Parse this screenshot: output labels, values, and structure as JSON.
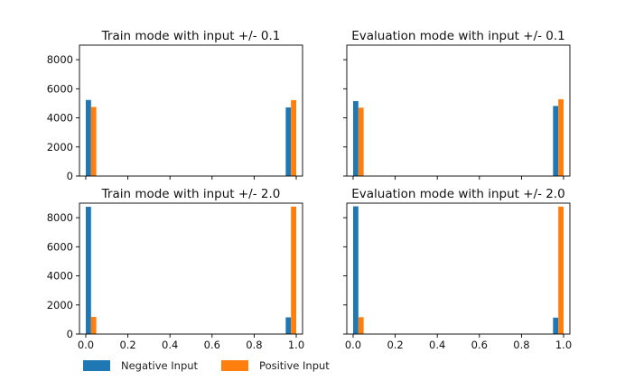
{
  "chart_data": [
    {
      "type": "bar",
      "title": "Train mode with input +/- 0.1",
      "categories": [
        "0.0",
        "1.0"
      ],
      "series": [
        {
          "name": "Negative Input",
          "values": [
            5230,
            4720
          ]
        },
        {
          "name": "Positive Input",
          "values": [
            4750,
            5220
          ]
        }
      ],
      "xlim": [
        -0.03,
        1.03
      ],
      "ylim": [
        0,
        9000
      ],
      "yticks": [
        0,
        2000,
        4000,
        6000,
        8000
      ],
      "xticks": [
        0.0,
        0.2,
        0.4,
        0.6,
        0.8,
        1.0
      ]
    },
    {
      "type": "bar",
      "title": "Evaluation mode with input +/- 0.1",
      "categories": [
        "0.0",
        "1.0"
      ],
      "series": [
        {
          "name": "Negative Input",
          "values": [
            5150,
            4820
          ]
        },
        {
          "name": "Positive Input",
          "values": [
            4700,
            5280
          ]
        }
      ],
      "xlim": [
        -0.03,
        1.03
      ],
      "ylim": [
        0,
        9000
      ],
      "yticks": [
        0,
        2000,
        4000,
        6000,
        8000
      ],
      "xticks": [
        0.0,
        0.2,
        0.4,
        0.6,
        0.8,
        1.0
      ]
    },
    {
      "type": "bar",
      "title": "Train mode with input +/- 2.0",
      "categories": [
        "0.0",
        "1.0"
      ],
      "series": [
        {
          "name": "Negative Input",
          "values": [
            8750,
            1150
          ]
        },
        {
          "name": "Positive Input",
          "values": [
            1180,
            8760
          ]
        }
      ],
      "xlim": [
        -0.03,
        1.03
      ],
      "ylim": [
        0,
        9000
      ],
      "yticks": [
        0,
        2000,
        4000,
        6000,
        8000
      ],
      "xticks": [
        0.0,
        0.2,
        0.4,
        0.6,
        0.8,
        1.0
      ]
    },
    {
      "type": "bar",
      "title": "Evaluation mode with input +/- 2.0",
      "categories": [
        "0.0",
        "1.0"
      ],
      "series": [
        {
          "name": "Negative Input",
          "values": [
            8780,
            1130
          ]
        },
        {
          "name": "Positive Input",
          "values": [
            1160,
            8760
          ]
        }
      ],
      "xlim": [
        -0.03,
        1.03
      ],
      "ylim": [
        0,
        9000
      ],
      "yticks": [
        0,
        2000,
        4000,
        6000,
        8000
      ],
      "xticks": [
        0.0,
        0.2,
        0.4,
        0.6,
        0.8,
        1.0
      ]
    }
  ],
  "legend": {
    "items": [
      {
        "label": "Negative Input",
        "color": "#1f77b4"
      },
      {
        "label": "Positive Input",
        "color": "#ff7f0e"
      }
    ]
  },
  "colors": {
    "negative": "#1f77b4",
    "positive": "#ff7f0e",
    "axis": "#000000"
  }
}
